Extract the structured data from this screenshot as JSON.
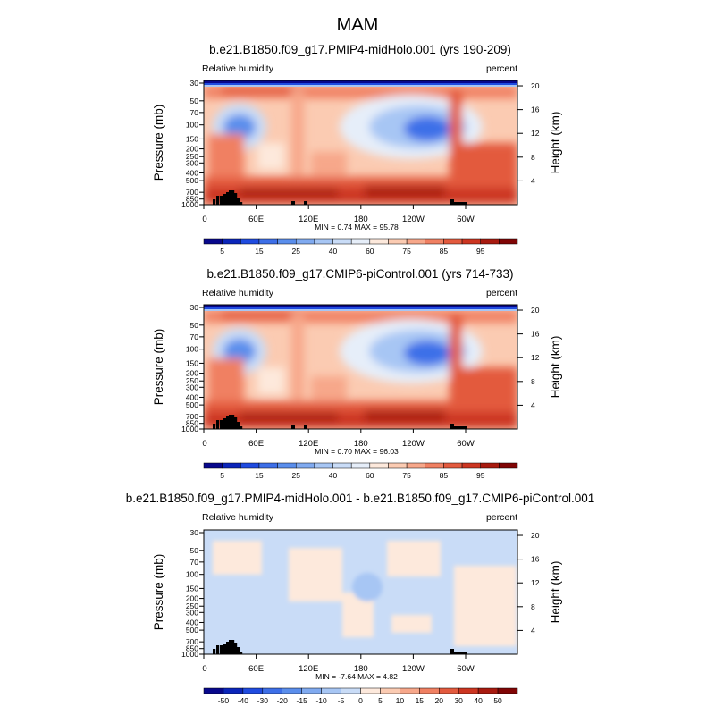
{
  "figure": {
    "title": "MAM"
  },
  "chart_data": [
    {
      "type": "heatmap",
      "title": "b.e21.B1850.f09_g17.PMIP4-midHolo.001 (yrs 190-209)",
      "variable": "Relative humidity",
      "units": "percent",
      "xlabel": "",
      "ylabel": "Pressure (mb)",
      "y2label": "Height (km)",
      "x_ticks": [
        "0",
        "60E",
        "120E",
        "180",
        "120W",
        "60W"
      ],
      "pressure_ticks": [
        "30",
        "50",
        "70",
        "100",
        "150",
        "200",
        "250",
        "300",
        "400",
        "500",
        "700",
        "850",
        "1000"
      ],
      "pressure_tick_labels": [
        "30",
        "50",
        "70",
        "100",
        "150",
        "200",
        "250",
        "300",
        "400",
        "500",
        "700",
        "850",
        "1000"
      ],
      "height_ticks": [
        "20",
        "16",
        "12",
        "8",
        "4"
      ],
      "stats_text": "MIN =   0.74  MAX =  95.78",
      "min": 0.74,
      "max": 95.78,
      "colorbar_levels": [
        5,
        10,
        15,
        20,
        25,
        30,
        40,
        50,
        60,
        70,
        75,
        80,
        85,
        90,
        95
      ],
      "colorbar_labels": [
        "5",
        "15",
        "25",
        "40",
        "60",
        "75",
        "85",
        "95"
      ],
      "colors": [
        "#08088c",
        "#0b25ba",
        "#1f4be0",
        "#3d6fe8",
        "#5a8eec",
        "#80aaf0",
        "#a7c6f4",
        "#c9dcf7",
        "#e6eef9",
        "#fde9dc",
        "#fbcbb2",
        "#f7a78a",
        "#f08062",
        "#e35a3e",
        "#cc3521",
        "#a81a0f",
        "#800505"
      ]
    },
    {
      "type": "heatmap",
      "title": "b.e21.B1850.f09_g17.CMIP6-piControl.001 (yrs 714-733)",
      "variable": "Relative humidity",
      "units": "percent",
      "xlabel": "",
      "ylabel": "Pressure (mb)",
      "y2label": "Height (km)",
      "x_ticks": [
        "0",
        "60E",
        "120E",
        "180",
        "120W",
        "60W"
      ],
      "pressure_ticks": [
        "30",
        "50",
        "70",
        "100",
        "150",
        "200",
        "250",
        "300",
        "400",
        "500",
        "700",
        "850",
        "1000"
      ],
      "pressure_tick_labels": [
        "30",
        "50",
        "70",
        "100",
        "150",
        "200",
        "250",
        "300",
        "400",
        "500",
        "700",
        "850",
        "1000"
      ],
      "height_ticks": [
        "20",
        "16",
        "12",
        "8",
        "4"
      ],
      "stats_text": "MIN =   0.70  MAX =  96.03",
      "min": 0.7,
      "max": 96.03,
      "colorbar_levels": [
        5,
        10,
        15,
        20,
        25,
        30,
        40,
        50,
        60,
        70,
        75,
        80,
        85,
        90,
        95
      ],
      "colorbar_labels": [
        "5",
        "15",
        "25",
        "40",
        "60",
        "75",
        "85",
        "95"
      ],
      "colors": [
        "#08088c",
        "#0b25ba",
        "#1f4be0",
        "#3d6fe8",
        "#5a8eec",
        "#80aaf0",
        "#a7c6f4",
        "#c9dcf7",
        "#e6eef9",
        "#fde9dc",
        "#fbcbb2",
        "#f7a78a",
        "#f08062",
        "#e35a3e",
        "#cc3521",
        "#a81a0f",
        "#800505"
      ]
    },
    {
      "type": "heatmap",
      "title": "b.e21.B1850.f09_g17.PMIP4-midHolo.001 - b.e21.B1850.f09_g17.CMIP6-piControl.001",
      "variable": "Relative humidity",
      "units": "percent",
      "xlabel": "",
      "ylabel": "Pressure (mb)",
      "y2label": "Height (km)",
      "x_ticks": [
        "0",
        "60E",
        "120E",
        "180",
        "120W",
        "60W"
      ],
      "pressure_ticks": [
        "30",
        "50",
        "70",
        "100",
        "150",
        "200",
        "250",
        "300",
        "400",
        "500",
        "700",
        "850",
        "1000"
      ],
      "pressure_tick_labels": [
        "30",
        "50",
        "70",
        "100",
        "150",
        "200",
        "250",
        "300",
        "400",
        "500",
        "700",
        "850",
        "1000"
      ],
      "height_ticks": [
        "20",
        "16",
        "12",
        "8",
        "4"
      ],
      "stats_text": "MIN =  -7.64  MAX =   4.82",
      "min": -7.64,
      "max": 4.82,
      "colorbar_levels": [
        -50,
        -40,
        -30,
        -20,
        -15,
        -10,
        -5,
        0,
        5,
        10,
        15,
        20,
        30,
        40,
        50
      ],
      "colorbar_labels": [
        "-50",
        "-40",
        "-30",
        "-20",
        "-15",
        "-10",
        "-5",
        "0",
        "5",
        "10",
        "15",
        "20",
        "30",
        "40",
        "50"
      ],
      "colors": [
        "#08088c",
        "#0b25ba",
        "#1f4be0",
        "#3d6fe8",
        "#5a8eec",
        "#80aaf0",
        "#a7c6f4",
        "#c9dcf7",
        "#fde9dc",
        "#fbcbb2",
        "#f7a78a",
        "#f08062",
        "#e35a3e",
        "#cc3521",
        "#a81a0f",
        "#800505"
      ]
    }
  ]
}
